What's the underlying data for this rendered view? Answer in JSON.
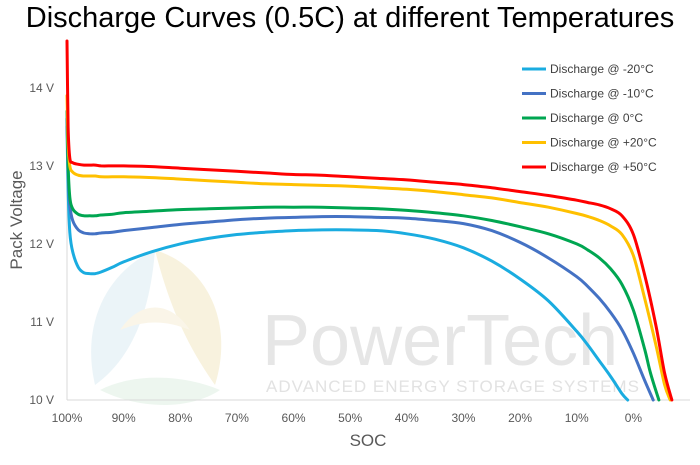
{
  "chart_data": {
    "type": "line",
    "title": "Discharge Curves (0.5C) at different Temperatures",
    "xlabel": "SOC",
    "ylabel": "Pack Voltage",
    "x_ticks": [
      "100%",
      "90%",
      "80%",
      "70%",
      "60%",
      "50%",
      "40%",
      "30%",
      "20%",
      "10%",
      "0%"
    ],
    "y_ticks": [
      "10 V",
      "11 V",
      "12 V",
      "13 V",
      "14 V"
    ],
    "xlim": [
      100,
      -10
    ],
    "ylim": [
      10,
      14.6
    ],
    "grid": false,
    "legend_position": "top-right",
    "series": [
      {
        "name": "Discharge @ -20°C",
        "color": "#1AACE0",
        "x": [
          100,
          99.8,
          99.5,
          99,
          98,
          97,
          96,
          95,
          94,
          92,
          90,
          85,
          80,
          75,
          70,
          65,
          60,
          55,
          50,
          45,
          40,
          35,
          30,
          25,
          20,
          15,
          10,
          8,
          6,
          4,
          2,
          1
        ],
        "y": [
          13.5,
          12.7,
          12.15,
          11.9,
          11.7,
          11.63,
          11.62,
          11.62,
          11.64,
          11.7,
          11.77,
          11.9,
          12.0,
          12.07,
          12.12,
          12.15,
          12.17,
          12.18,
          12.18,
          12.17,
          12.13,
          12.06,
          11.95,
          11.78,
          11.55,
          11.27,
          10.88,
          10.7,
          10.5,
          10.3,
          10.08,
          10.0
        ]
      },
      {
        "name": "Discharge @ -10°C",
        "color": "#4472C4",
        "x": [
          100,
          99.8,
          99.5,
          99,
          98,
          97,
          96,
          95,
          94,
          92,
          90,
          85,
          80,
          75,
          70,
          65,
          60,
          55,
          50,
          45,
          40,
          35,
          30,
          25,
          20,
          15,
          10,
          8,
          6,
          4,
          2,
          0,
          -2,
          -3.5
        ],
        "y": [
          13.6,
          12.9,
          12.5,
          12.3,
          12.18,
          12.14,
          12.13,
          12.13,
          12.14,
          12.15,
          12.17,
          12.21,
          12.25,
          12.28,
          12.31,
          12.33,
          12.34,
          12.35,
          12.35,
          12.34,
          12.33,
          12.3,
          12.26,
          12.17,
          12.02,
          11.82,
          11.58,
          11.45,
          11.3,
          11.12,
          10.9,
          10.6,
          10.25,
          10.0
        ]
      },
      {
        "name": "Discharge @ 0°C",
        "color": "#00A651",
        "x": [
          100,
          99.8,
          99.5,
          99,
          98,
          97,
          96,
          95,
          94,
          92,
          90,
          85,
          80,
          75,
          70,
          65,
          60,
          55,
          50,
          45,
          40,
          35,
          30,
          25,
          20,
          15,
          10,
          8,
          6,
          4,
          2,
          0,
          -2,
          -3,
          -4.5
        ],
        "y": [
          13.7,
          13.0,
          12.6,
          12.45,
          12.38,
          12.36,
          12.36,
          12.36,
          12.37,
          12.38,
          12.4,
          12.42,
          12.44,
          12.45,
          12.46,
          12.47,
          12.47,
          12.47,
          12.46,
          12.45,
          12.43,
          12.4,
          12.36,
          12.3,
          12.22,
          12.13,
          12.0,
          11.92,
          11.82,
          11.68,
          11.48,
          11.15,
          10.65,
          10.35,
          10.0
        ]
      },
      {
        "name": "Discharge @ +20°C",
        "color": "#FFC000",
        "x": [
          100,
          99.8,
          99.5,
          99,
          98,
          97,
          96,
          95,
          94,
          92,
          90,
          85,
          80,
          75,
          70,
          65,
          60,
          55,
          50,
          45,
          40,
          35,
          30,
          25,
          20,
          15,
          10,
          8,
          6,
          4,
          2,
          0,
          -2,
          -4,
          -5.5,
          -6.5
        ],
        "y": [
          13.9,
          13.3,
          13.0,
          12.92,
          12.88,
          12.87,
          12.87,
          12.87,
          12.86,
          12.86,
          12.86,
          12.85,
          12.83,
          12.81,
          12.79,
          12.77,
          12.76,
          12.75,
          12.74,
          12.72,
          12.7,
          12.67,
          12.63,
          12.59,
          12.53,
          12.47,
          12.39,
          12.35,
          12.3,
          12.23,
          12.12,
          11.85,
          11.3,
          10.7,
          10.2,
          10.0
        ]
      },
      {
        "name": "Discharge @ +50°C",
        "color": "#FF0000",
        "x": [
          100,
          99.8,
          99.5,
          99,
          98,
          97,
          96,
          95,
          94,
          92,
          90,
          85,
          80,
          75,
          70,
          65,
          60,
          55,
          50,
          45,
          40,
          35,
          30,
          25,
          20,
          15,
          10,
          8,
          6,
          4,
          2,
          0,
          -2,
          -4,
          -5.5,
          -6.8
        ],
        "y": [
          14.6,
          13.5,
          13.1,
          13.04,
          13.02,
          13.01,
          13.01,
          13.01,
          13.0,
          13.0,
          13.0,
          12.99,
          12.97,
          12.95,
          12.93,
          12.91,
          12.89,
          12.88,
          12.86,
          12.84,
          12.82,
          12.79,
          12.76,
          12.72,
          12.67,
          12.62,
          12.56,
          12.53,
          12.5,
          12.45,
          12.36,
          12.12,
          11.6,
          10.95,
          10.35,
          10.0
        ]
      }
    ]
  },
  "watermark": {
    "brand": "PowerTech",
    "tagline": "ADVANCED ENERGY STORAGE SYSTEMS"
  }
}
